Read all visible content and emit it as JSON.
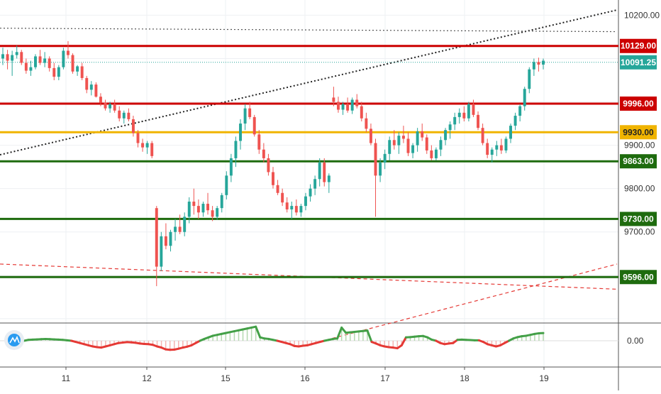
{
  "chart_data": {
    "type": "candlestick",
    "price_axis": {
      "ticks": [
        "10200.00",
        "9900.00",
        "9800.00",
        "9700.00"
      ],
      "tick_values": [
        10200,
        9900,
        9800,
        9700
      ],
      "range": [
        9490,
        10235
      ]
    },
    "time_axis": {
      "ticks": [
        "11",
        "12",
        "15",
        "16",
        "17",
        "18",
        "19"
      ]
    },
    "horizontal_levels": [
      {
        "label": "10129.00",
        "value": 10129,
        "color": "#cc0000"
      },
      {
        "label": "9996.00",
        "value": 9996,
        "color": "#cc0000"
      },
      {
        "label": "9930.00",
        "value": 9930,
        "color": "#f0b400"
      },
      {
        "label": "9863.00",
        "value": 9863,
        "color": "#1e6b0e"
      },
      {
        "label": "9730.00",
        "value": 9730,
        "color": "#1e6b0e"
      },
      {
        "label": "9596.00",
        "value": 9596,
        "color": "#1e6b0e"
      }
    ],
    "last_price": {
      "label": "10091.25",
      "value": 10091.25,
      "color": "#26a69a"
    },
    "trendlines": [
      {
        "style": "dotted",
        "color": "#222222",
        "from": [
          0,
          9878
        ],
        "to": [
          870,
          10212
        ]
      },
      {
        "style": "dotted",
        "color": "#555555",
        "from": [
          0,
          10170
        ],
        "to": [
          870,
          10162
        ]
      },
      {
        "style": "dashed",
        "color": "#e53935",
        "from": [
          0,
          9626
        ],
        "to": [
          870,
          9568
        ]
      },
      {
        "style": "dashed",
        "color": "#e53935",
        "from": [
          425,
          9436
        ],
        "to": [
          870,
          9626
        ]
      }
    ],
    "candles": [
      [
        10100,
        10125,
        10085,
        10110
      ],
      [
        10110,
        10120,
        10075,
        10095
      ],
      [
        10095,
        10118,
        10060,
        10108
      ],
      [
        10108,
        10130,
        10100,
        10115
      ],
      [
        10115,
        10120,
        10085,
        10090
      ],
      [
        10090,
        10100,
        10065,
        10072
      ],
      [
        10072,
        10095,
        10060,
        10080
      ],
      [
        10080,
        10110,
        10075,
        10105
      ],
      [
        10105,
        10120,
        10085,
        10090
      ],
      [
        10090,
        10115,
        10080,
        10100
      ],
      [
        10100,
        10105,
        10070,
        10078
      ],
      [
        10078,
        10090,
        10050,
        10058
      ],
      [
        10058,
        10085,
        10050,
        10080
      ],
      [
        10080,
        10125,
        10075,
        10118
      ],
      [
        10118,
        10140,
        10100,
        10108
      ],
      [
        10108,
        10112,
        10065,
        10070
      ],
      [
        10070,
        10085,
        10060,
        10082
      ],
      [
        10082,
        10090,
        10050,
        10055
      ],
      [
        10055,
        10060,
        10020,
        10028
      ],
      [
        10028,
        10048,
        10015,
        10040
      ],
      [
        10040,
        10045,
        10010,
        10012
      ],
      [
        10012,
        10020,
        9990,
        9998
      ],
      [
        9998,
        10005,
        9980,
        9985
      ],
      [
        9985,
        10000,
        9975,
        9995
      ],
      [
        9995,
        10005,
        9975,
        9980
      ],
      [
        9980,
        9990,
        9955,
        9962
      ],
      [
        9962,
        9980,
        9950,
        9975
      ],
      [
        9975,
        9985,
        9955,
        9960
      ],
      [
        9960,
        9968,
        9920,
        9928
      ],
      [
        9928,
        9935,
        9895,
        9905
      ],
      [
        9905,
        9915,
        9885,
        9895
      ],
      [
        9895,
        9910,
        9880,
        9905
      ],
      [
        9905,
        9910,
        9870,
        9875
      ],
      [
        9755,
        9760,
        9575,
        9620
      ],
      [
        9620,
        9700,
        9610,
        9690
      ],
      [
        9690,
        9720,
        9660,
        9668
      ],
      [
        9668,
        9705,
        9655,
        9700
      ],
      [
        9700,
        9730,
        9680,
        9712
      ],
      [
        9712,
        9740,
        9695,
        9700
      ],
      [
        9700,
        9745,
        9690,
        9735
      ],
      [
        9735,
        9780,
        9720,
        9770
      ],
      [
        9770,
        9800,
        9740,
        9760
      ],
      [
        9760,
        9775,
        9730,
        9745
      ],
      [
        9745,
        9770,
        9735,
        9765
      ],
      [
        9765,
        9790,
        9740,
        9750
      ],
      [
        9750,
        9760,
        9725,
        9735
      ],
      [
        9735,
        9760,
        9728,
        9755
      ],
      [
        9755,
        9790,
        9745,
        9785
      ],
      [
        9785,
        9840,
        9775,
        9830
      ],
      [
        9830,
        9880,
        9815,
        9870
      ],
      [
        9870,
        9920,
        9850,
        9910
      ],
      [
        9910,
        9960,
        9890,
        9950
      ],
      [
        9950,
        9995,
        9935,
        9985
      ],
      [
        9985,
        10000,
        9960,
        9965
      ],
      [
        9965,
        9970,
        9920,
        9925
      ],
      [
        9925,
        9935,
        9880,
        9890
      ],
      [
        9890,
        9905,
        9860,
        9870
      ],
      [
        9870,
        9880,
        9830,
        9838
      ],
      [
        9838,
        9850,
        9800,
        9808
      ],
      [
        9808,
        9820,
        9785,
        9790
      ],
      [
        9790,
        9800,
        9760,
        9768
      ],
      [
        9768,
        9780,
        9745,
        9752
      ],
      [
        9752,
        9770,
        9730,
        9760
      ],
      [
        9760,
        9775,
        9738,
        9745
      ],
      [
        9745,
        9765,
        9735,
        9760
      ],
      [
        9760,
        9790,
        9750,
        9782
      ],
      [
        9782,
        9810,
        9770,
        9800
      ],
      [
        9800,
        9830,
        9785,
        9822
      ],
      [
        9822,
        9870,
        9805,
        9860
      ],
      [
        9860,
        9870,
        9805,
        9815
      ],
      [
        9815,
        9835,
        9790,
        9830
      ],
      [
        10010,
        10035,
        9990,
        10000
      ],
      [
        10000,
        10012,
        9975,
        9982
      ],
      [
        9982,
        10000,
        9970,
        9995
      ],
      [
        9995,
        10010,
        9975,
        9980
      ],
      [
        9980,
        10010,
        9972,
        10005
      ],
      [
        10005,
        10018,
        9985,
        9990
      ],
      [
        9990,
        10000,
        9955,
        9962
      ],
      [
        9962,
        9975,
        9930,
        9938
      ],
      [
        9938,
        9950,
        9900,
        9905
      ],
      [
        9905,
        9915,
        9735,
        9830
      ],
      [
        9830,
        9870,
        9815,
        9860
      ],
      [
        9860,
        9890,
        9845,
        9880
      ],
      [
        9880,
        9920,
        9865,
        9912
      ],
      [
        9912,
        9935,
        9890,
        9900
      ],
      [
        9900,
        9930,
        9880,
        9922
      ],
      [
        9922,
        9945,
        9905,
        9915
      ],
      [
        9915,
        9930,
        9875,
        9882
      ],
      [
        9882,
        9905,
        9870,
        9900
      ],
      [
        9900,
        9940,
        9885,
        9932
      ],
      [
        9932,
        9950,
        9910,
        9918
      ],
      [
        9918,
        9925,
        9880,
        9888
      ],
      [
        9888,
        9900,
        9865,
        9870
      ],
      [
        9870,
        9895,
        9865,
        9890
      ],
      [
        9890,
        9920,
        9875,
        9912
      ],
      [
        9912,
        9940,
        9900,
        9935
      ],
      [
        9935,
        9955,
        9915,
        9948
      ],
      [
        9948,
        9975,
        9935,
        9965
      ],
      [
        9965,
        9985,
        9950,
        9975
      ],
      [
        9975,
        9990,
        9955,
        9962
      ],
      [
        9962,
        10000,
        9955,
        9995
      ],
      [
        9995,
        10005,
        9965,
        9970
      ],
      [
        9970,
        9978,
        9935,
        9940
      ],
      [
        9940,
        9950,
        9900,
        9905
      ],
      [
        9905,
        9915,
        9870,
        9878
      ],
      [
        9878,
        9895,
        9860,
        9890
      ],
      [
        9890,
        9910,
        9875,
        9900
      ],
      [
        9900,
        9915,
        9880,
        9888
      ],
      [
        9888,
        9920,
        9882,
        9915
      ],
      [
        9915,
        9950,
        9905,
        9945
      ],
      [
        9945,
        9975,
        9935,
        9968
      ],
      [
        9968,
        9995,
        9955,
        9990
      ],
      [
        9990,
        10035,
        9980,
        10030
      ],
      [
        10030,
        10080,
        10020,
        10075
      ],
      [
        10075,
        10100,
        10060,
        10092
      ],
      [
        10092,
        10102,
        10070,
        10086
      ],
      [
        10086,
        10100,
        10075,
        10095
      ]
    ],
    "oscillator": {
      "axis_label": "0.00",
      "values": [
        0,
        0.4,
        0.5,
        0.6,
        0.7,
        0.8,
        0.7,
        0.6,
        0.5,
        0.4,
        0.2,
        0,
        -0.5,
        -1,
        -1.5,
        -2,
        -2.5,
        -2.8,
        -3,
        -2.5,
        -2,
        -1.5,
        -1,
        -0.8,
        -0.6,
        -0.7,
        -0.9,
        -1.2,
        -1.4,
        -1.5,
        -1.8,
        -2.5,
        -3,
        -3.8,
        -4,
        -3.9,
        -3.5,
        -3,
        -2.6,
        -2,
        -1,
        0,
        0.8,
        1.5,
        2.2,
        2.6,
        3,
        3.4,
        3.8,
        4.2,
        4.6,
        5,
        5.4,
        5.8,
        6.2,
        1.5,
        1,
        0.8,
        0.4,
        0,
        -0.5,
        -1,
        -1.5,
        -2.3,
        -2.5,
        -2.2,
        -2,
        -1.5,
        -1,
        -0.5,
        0,
        0.4,
        0.8,
        1,
        5.8,
        3.5,
        3.7,
        3.9,
        4.1,
        4.3,
        4.5,
        -0.5,
        -1.2,
        -2,
        -2.5,
        -2.8,
        -3,
        -3.3,
        -2,
        1.5,
        1.6,
        1.8,
        2,
        2.1,
        1.5,
        0.5,
        0,
        -1,
        -1.5,
        -1.2,
        -1,
        0.4,
        0.5,
        0.4,
        0.3,
        0.2,
        0.2,
        -0.5,
        -1.5,
        -2,
        -2.5,
        -2,
        -1,
        0,
        1,
        1.6,
        2,
        2.2,
        2.6,
        3.0,
        3.3,
        3.4
      ]
    }
  }
}
